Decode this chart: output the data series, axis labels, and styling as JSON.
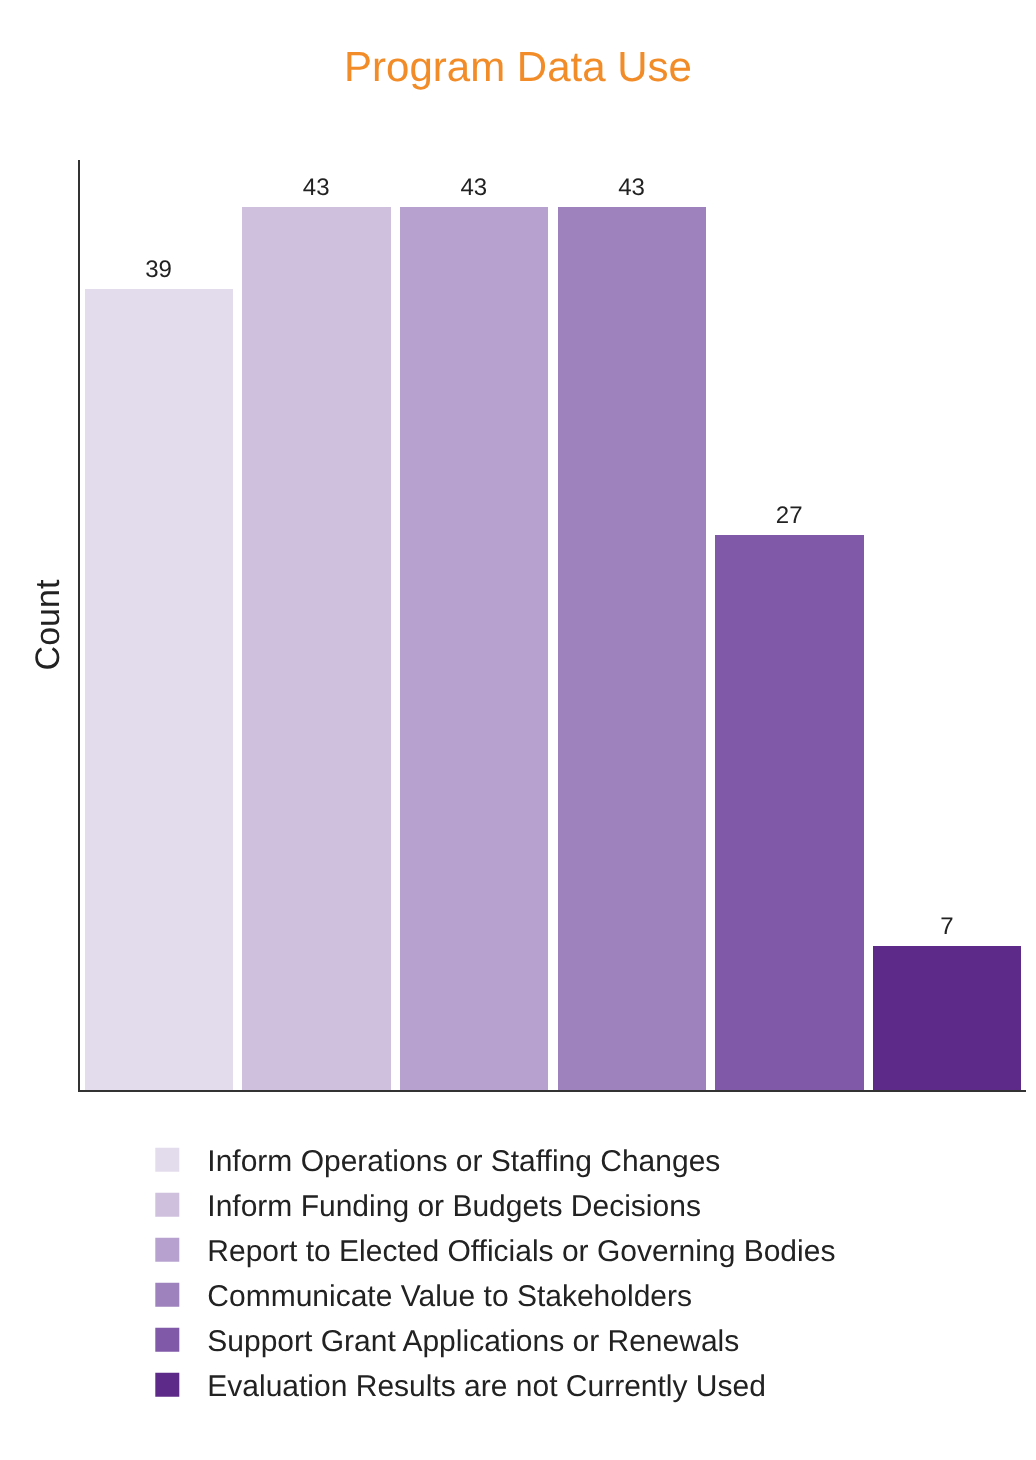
{
  "chart_data": {
    "type": "bar",
    "title": "Program Data Use",
    "ylabel": "Count",
    "categories": [
      null,
      null,
      null,
      null,
      null,
      null
    ],
    "series": [
      {
        "name": "Inform Operations or Staffing Changes",
        "color": "#e3dcec",
        "values": [
          39,
          null,
          null,
          null,
          null,
          null
        ]
      },
      {
        "name": "Inform Funding or Budgets Decisions",
        "color": "#cfc0de",
        "values": [
          null,
          43,
          null,
          null,
          null,
          null
        ]
      },
      {
        "name": "Report to Elected Officials or Governing Bodies",
        "color": "#b7a2cf",
        "values": [
          null,
          null,
          43,
          null,
          null,
          null
        ]
      },
      {
        "name": "Communicate Value to Stakeholders",
        "color": "#9e82bd",
        "values": [
          null,
          null,
          null,
          43,
          null,
          null
        ]
      },
      {
        "name": "Support Grant Applications or Renewals",
        "color": "#8159a9",
        "values": [
          null,
          null,
          null,
          null,
          27,
          null
        ]
      },
      {
        "name": "Evaluation Results are not Currently Used",
        "color": "#5e2a8a",
        "values": [
          null,
          null,
          null,
          null,
          null,
          7
        ]
      }
    ],
    "stacked": true,
    "data_labels": true,
    "legend": "bottom",
    "tick_labels": false
  }
}
